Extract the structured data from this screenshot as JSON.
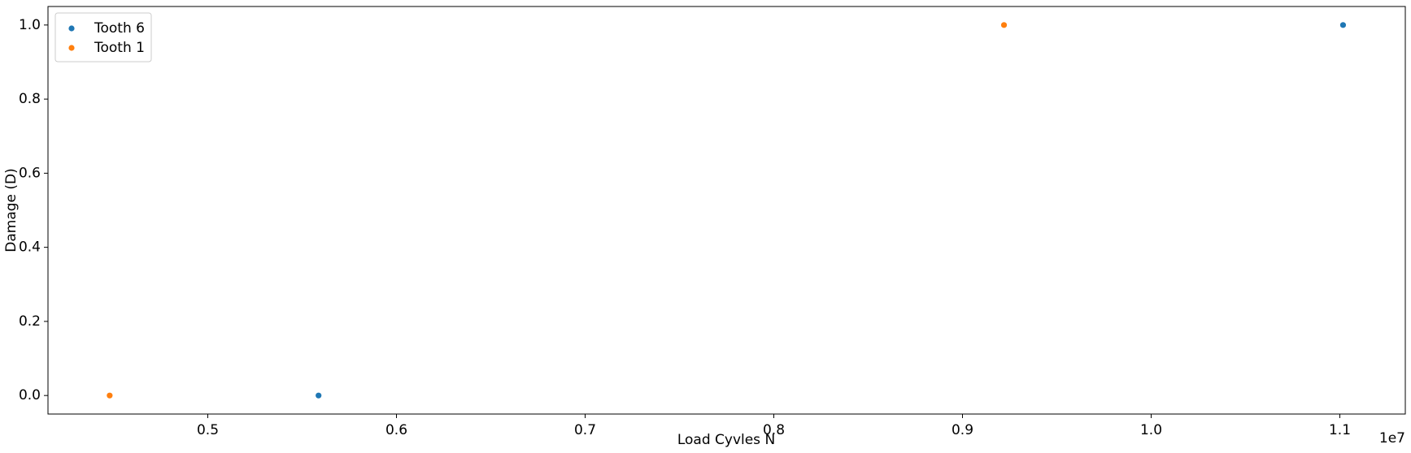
{
  "chart_data": {
    "type": "scatter",
    "xlabel": "Load Cyvles N",
    "ylabel": "Damage (D)",
    "x_offset_label": "1e7",
    "series": [
      {
        "name": "Tooth 6",
        "color": "#1f77b4",
        "x": [
          5587000,
          11017000
        ],
        "values": [
          0,
          1
        ]
      },
      {
        "name": "Tooth 1",
        "color": "#ff7f0e",
        "x": [
          4480000,
          9220000
        ],
        "values": [
          0,
          1
        ]
      }
    ],
    "xlim": [
      4153000,
      11347000
    ],
    "ylim": [
      -0.05,
      1.05
    ],
    "xticks": [
      {
        "value": 5000000,
        "label": "0.5"
      },
      {
        "value": 6000000,
        "label": "0.6"
      },
      {
        "value": 7000000,
        "label": "0.7"
      },
      {
        "value": 8000000,
        "label": "0.8"
      },
      {
        "value": 9000000,
        "label": "0.9"
      },
      {
        "value": 10000000,
        "label": "1.0"
      },
      {
        "value": 11000000,
        "label": "1.1"
      }
    ],
    "yticks": [
      {
        "value": 0,
        "label": "0.0"
      },
      0.2,
      0.4,
      0.6,
      0.8,
      {
        "value": 1,
        "label": "1.0"
      }
    ],
    "legend": "upper left",
    "grid": false
  }
}
